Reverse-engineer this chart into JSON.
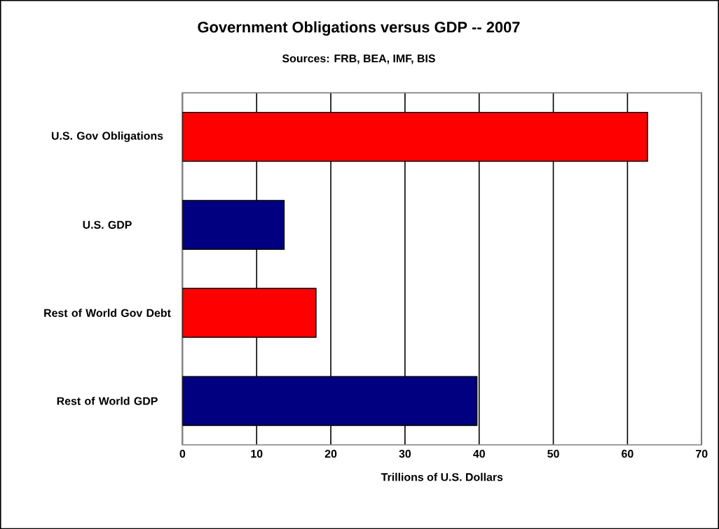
{
  "chart_data": {
    "type": "bar",
    "orientation": "horizontal",
    "title": "Government Obligations versus GDP -- 2007",
    "subtitle": "Sources: FRB, BEA, IMF, BIS",
    "categories": [
      "U.S. Gov Obligations",
      "U.S. GDP",
      "Rest of World Gov Debt",
      "Rest of World GDP"
    ],
    "values": [
      62.7,
      13.7,
      18.0,
      39.7
    ],
    "colors": [
      "#ff0000",
      "#000080",
      "#ff0000",
      "#000080"
    ],
    "xlabel": "Trillions of U.S. Dollars",
    "xlim": [
      0,
      70
    ],
    "xticks": [
      0,
      10,
      20,
      30,
      40,
      50,
      60,
      70
    ],
    "grid": "x"
  }
}
